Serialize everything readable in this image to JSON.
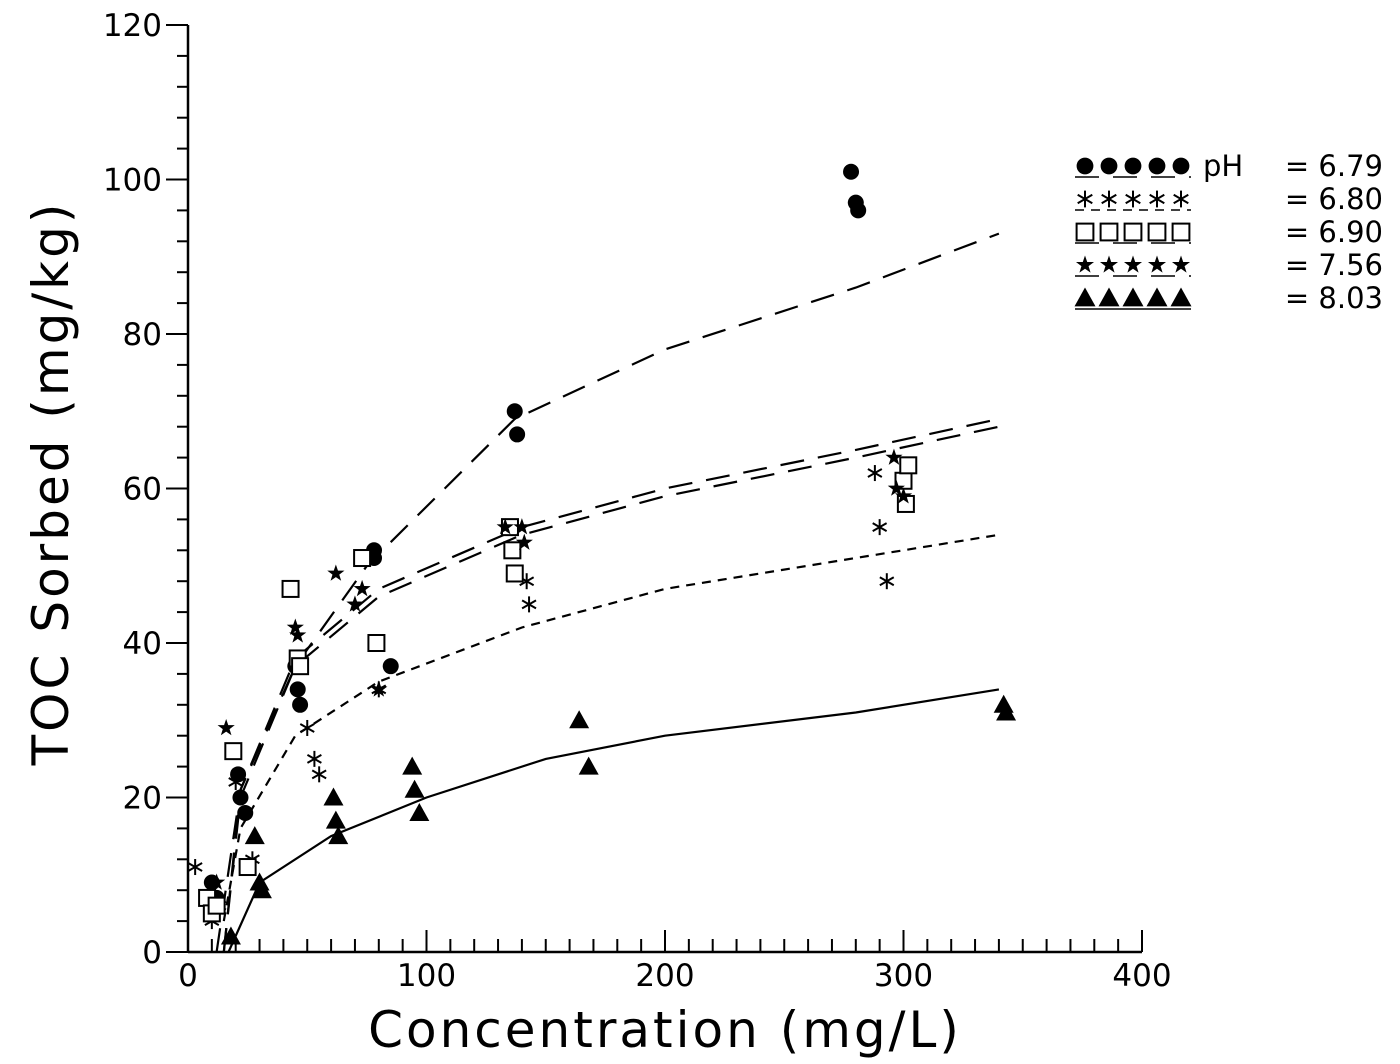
{
  "chart_data": {
    "type": "scatter",
    "xlabel": "Concentration (mg/L)",
    "ylabel": "TOC Sorbed (mg/kg)",
    "xlim": [
      0,
      400
    ],
    "ylim": [
      0,
      120
    ],
    "x_ticks": [
      "0",
      "100",
      "200",
      "300",
      "400"
    ],
    "y_ticks": [
      "0",
      "20",
      "40",
      "60",
      "80",
      "100",
      "120"
    ],
    "grid": false,
    "legend_position": "top-right",
    "legend_prefix": "pH",
    "series": [
      {
        "name": "6.79",
        "legend_label": "= 6.79",
        "marker": "circle-filled",
        "line": "long-dash",
        "points": [
          [
            10,
            9
          ],
          [
            12,
            7
          ],
          [
            21,
            23
          ],
          [
            22,
            20
          ],
          [
            24,
            18
          ],
          [
            45,
            37
          ],
          [
            46,
            34
          ],
          [
            47,
            32
          ],
          [
            78,
            52
          ],
          [
            78,
            51
          ],
          [
            85,
            37
          ],
          [
            137,
            70
          ],
          [
            138,
            67
          ],
          [
            278,
            101
          ],
          [
            280,
            97
          ],
          [
            281,
            96
          ]
        ],
        "fit": [
          [
            12,
            0
          ],
          [
            22,
            21
          ],
          [
            45,
            37
          ],
          [
            75,
            50
          ],
          [
            137,
            69
          ],
          [
            200,
            78
          ],
          [
            280,
            86
          ],
          [
            340,
            93
          ]
        ]
      },
      {
        "name": "6.80",
        "legend_label": "= 6.80",
        "marker": "asterisk",
        "line": "short-dash",
        "points": [
          [
            3,
            11
          ],
          [
            10,
            4
          ],
          [
            13,
            6
          ],
          [
            20,
            22
          ],
          [
            27,
            12
          ],
          [
            50,
            29
          ],
          [
            53,
            25
          ],
          [
            55,
            23
          ],
          [
            80,
            34
          ],
          [
            142,
            48
          ],
          [
            143,
            45
          ],
          [
            288,
            62
          ],
          [
            290,
            55
          ],
          [
            293,
            48
          ]
        ],
        "fit": [
          [
            15,
            4
          ],
          [
            22,
            16
          ],
          [
            45,
            28
          ],
          [
            80,
            35
          ],
          [
            140,
            42
          ],
          [
            200,
            47
          ],
          [
            280,
            51
          ],
          [
            340,
            54
          ]
        ]
      },
      {
        "name": "6.90",
        "legend_label": "= 6.90",
        "marker": "square-open",
        "line": "long-dash",
        "points": [
          [
            8,
            7
          ],
          [
            10,
            5
          ],
          [
            12,
            6
          ],
          [
            19,
            26
          ],
          [
            25,
            11
          ],
          [
            43,
            47
          ],
          [
            46,
            38
          ],
          [
            47,
            37
          ],
          [
            73,
            51
          ],
          [
            79,
            40
          ],
          [
            135,
            55
          ],
          [
            136,
            52
          ],
          [
            137,
            49
          ],
          [
            300,
            61
          ],
          [
            301,
            58
          ],
          [
            302,
            63
          ]
        ],
        "fit": [
          [
            15,
            0
          ],
          [
            22,
            20
          ],
          [
            45,
            37
          ],
          [
            80,
            46
          ],
          [
            140,
            54
          ],
          [
            200,
            59
          ],
          [
            280,
            64
          ],
          [
            340,
            68
          ]
        ]
      },
      {
        "name": "7.56",
        "legend_label": "= 7.56",
        "marker": "star-filled",
        "line": "long-dash",
        "points": [
          [
            12,
            9
          ],
          [
            16,
            29
          ],
          [
            45,
            42
          ],
          [
            46,
            41
          ],
          [
            62,
            49
          ],
          [
            70,
            45
          ],
          [
            73,
            47
          ],
          [
            80,
            34
          ],
          [
            133,
            55
          ],
          [
            140,
            55
          ],
          [
            141,
            53
          ],
          [
            296,
            64
          ],
          [
            297,
            60
          ],
          [
            300,
            59
          ]
        ],
        "fit": [
          [
            15,
            0
          ],
          [
            22,
            21
          ],
          [
            45,
            38
          ],
          [
            80,
            47
          ],
          [
            140,
            55
          ],
          [
            200,
            60
          ],
          [
            280,
            65
          ],
          [
            340,
            69
          ]
        ]
      },
      {
        "name": "8.03",
        "legend_label": "= 8.03",
        "marker": "triangle-filled",
        "line": "solid",
        "points": [
          [
            18,
            2
          ],
          [
            28,
            15
          ],
          [
            30,
            9
          ],
          [
            31,
            8
          ],
          [
            61,
            20
          ],
          [
            62,
            17
          ],
          [
            63,
            15
          ],
          [
            94,
            24
          ],
          [
            95,
            21
          ],
          [
            97,
            18
          ],
          [
            164,
            30
          ],
          [
            168,
            24
          ],
          [
            342,
            32
          ],
          [
            343,
            31
          ]
        ],
        "fit": [
          [
            17,
            0
          ],
          [
            30,
            9
          ],
          [
            60,
            15
          ],
          [
            100,
            20
          ],
          [
            150,
            25
          ],
          [
            200,
            28
          ],
          [
            280,
            31
          ],
          [
            340,
            34
          ]
        ]
      }
    ]
  }
}
